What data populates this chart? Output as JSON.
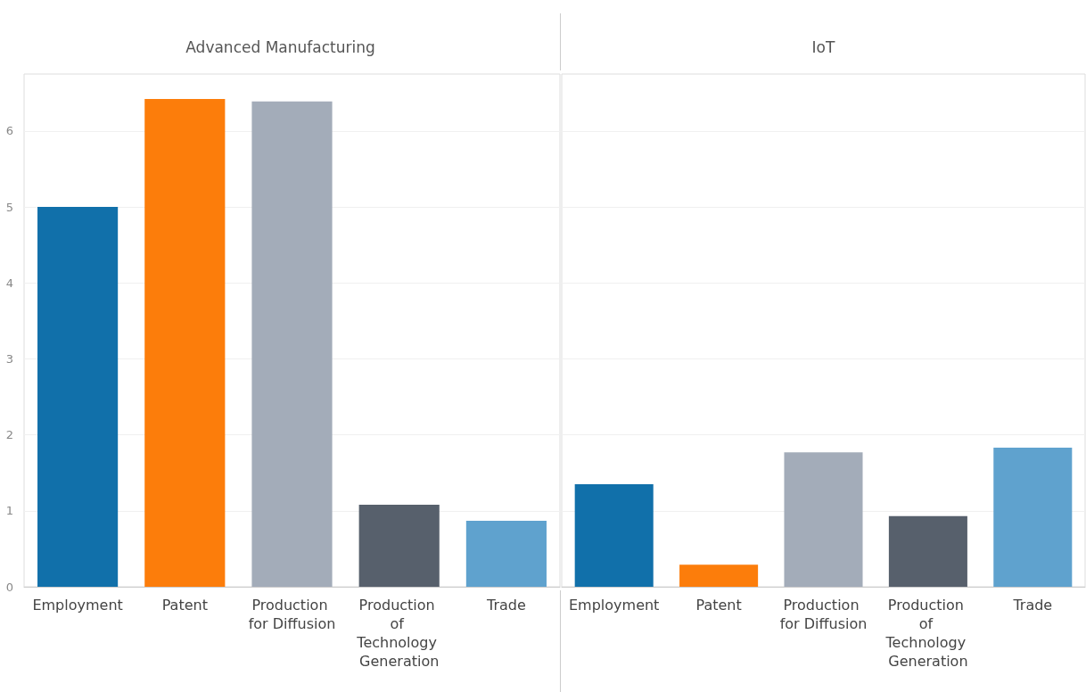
{
  "chart_data": [
    {
      "type": "bar",
      "title": "Advanced Manufacturing",
      "categories": [
        "Employment",
        "Patent",
        "Production for Diffusion",
        "Production of Technology Generation",
        "Trade"
      ],
      "values": [
        5.0,
        6.42,
        6.39,
        1.08,
        0.87
      ],
      "colors": [
        "#1170aa",
        "#fc7d0b",
        "#a3acb9",
        "#57606c",
        "#5fa2ce"
      ],
      "ylim": [
        0,
        6.75
      ],
      "yticks": [
        0,
        1,
        2,
        3,
        4,
        5,
        6
      ],
      "grid": "y"
    },
    {
      "type": "bar",
      "title": "IoT",
      "categories": [
        "Employment",
        "Patent",
        "Production for Diffusion",
        "Production of Technology Generation",
        "Trade"
      ],
      "values": [
        1.35,
        0.29,
        1.77,
        0.93,
        1.83
      ],
      "colors": [
        "#1170aa",
        "#fc7d0b",
        "#a3acb9",
        "#57606c",
        "#5fa2ce"
      ],
      "ylim": [
        0,
        6.75
      ],
      "yticks": [
        0,
        1,
        2,
        3,
        4,
        5,
        6
      ],
      "grid": "y",
      "tick_labels": "x"
    }
  ]
}
